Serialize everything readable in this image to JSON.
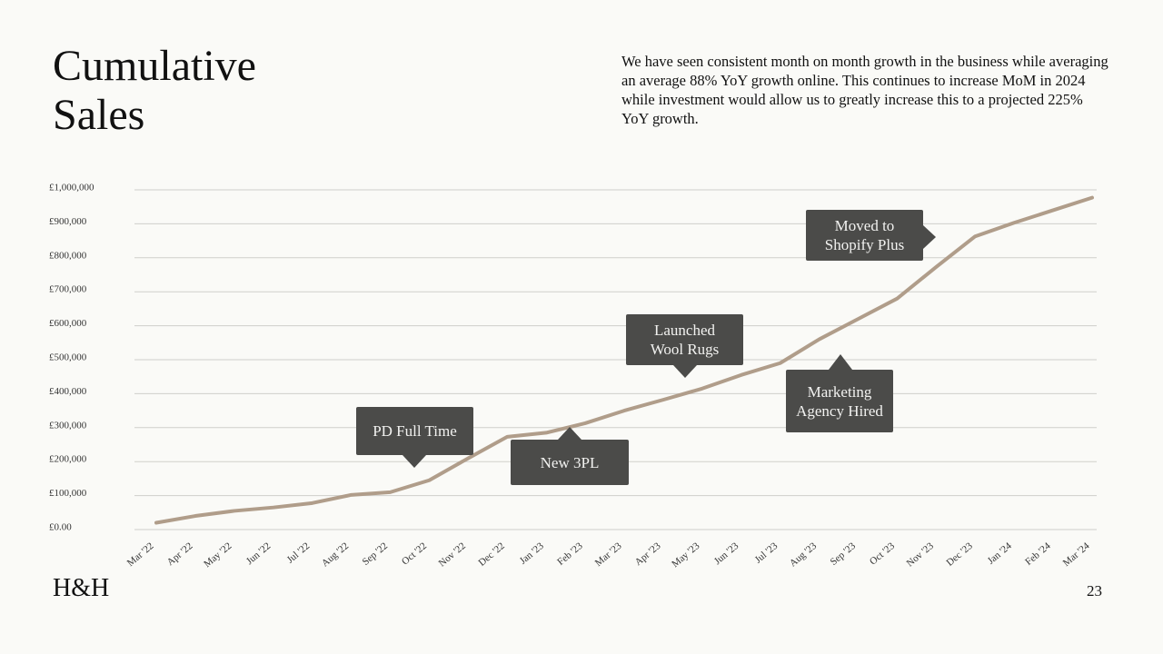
{
  "title": "Cumulative Sales",
  "description": "We have seen consistent month on month growth in the business while averaging an average 88% YoY growth online. This continues to increase MoM in 2024 while investment would allow us to greatly increase this to a projected 225% YoY growth.",
  "logo": "H&H",
  "page_number": "23",
  "chart_data": {
    "type": "line",
    "categories": [
      "Mar '22",
      "Apr '22",
      "May '22",
      "Jun '22",
      "Jul '22",
      "Aug '22",
      "Sep '22",
      "Oct '22",
      "Nov '22",
      "Dec '22",
      "Jan '23",
      "Feb '23",
      "Mar '23",
      "Apr '23",
      "May '23",
      "Jun '23",
      "Jul '23",
      "Aug '23",
      "Sep '23",
      "Oct '23",
      "Nov '23",
      "Dec '23",
      "Jan '24",
      "Feb '24",
      "Mar '24"
    ],
    "values": [
      20000,
      40000,
      55000,
      65000,
      78000,
      102000,
      110000,
      145000,
      210000,
      273000,
      285000,
      313000,
      350000,
      382000,
      415000,
      455000,
      490000,
      560000,
      620000,
      680000,
      773000,
      863000,
      903000,
      940000,
      977000
    ],
    "color": "#b09d8a",
    "ylim": [
      0,
      1000000
    ],
    "yticks": [
      {
        "value": 0,
        "label": "£0.00"
      },
      {
        "value": 100000,
        "label": "£100,000"
      },
      {
        "value": 200000,
        "label": "£200,000"
      },
      {
        "value": 300000,
        "label": "£300,000"
      },
      {
        "value": 400000,
        "label": "£400,000"
      },
      {
        "value": 500000,
        "label": "£500,000"
      },
      {
        "value": 600000,
        "label": "£600,000"
      },
      {
        "value": 700000,
        "label": "£700,000"
      },
      {
        "value": 800000,
        "label": "£800,000"
      },
      {
        "value": 900000,
        "label": "£900,000"
      },
      {
        "value": 1000000,
        "label": "£1,000,000"
      }
    ],
    "grid": true,
    "annotations": [
      "PD Full Time",
      "New 3PL",
      "Launched Wool Rugs",
      "Marketing Agency Hired",
      "Moved to Shopify Plus"
    ]
  }
}
